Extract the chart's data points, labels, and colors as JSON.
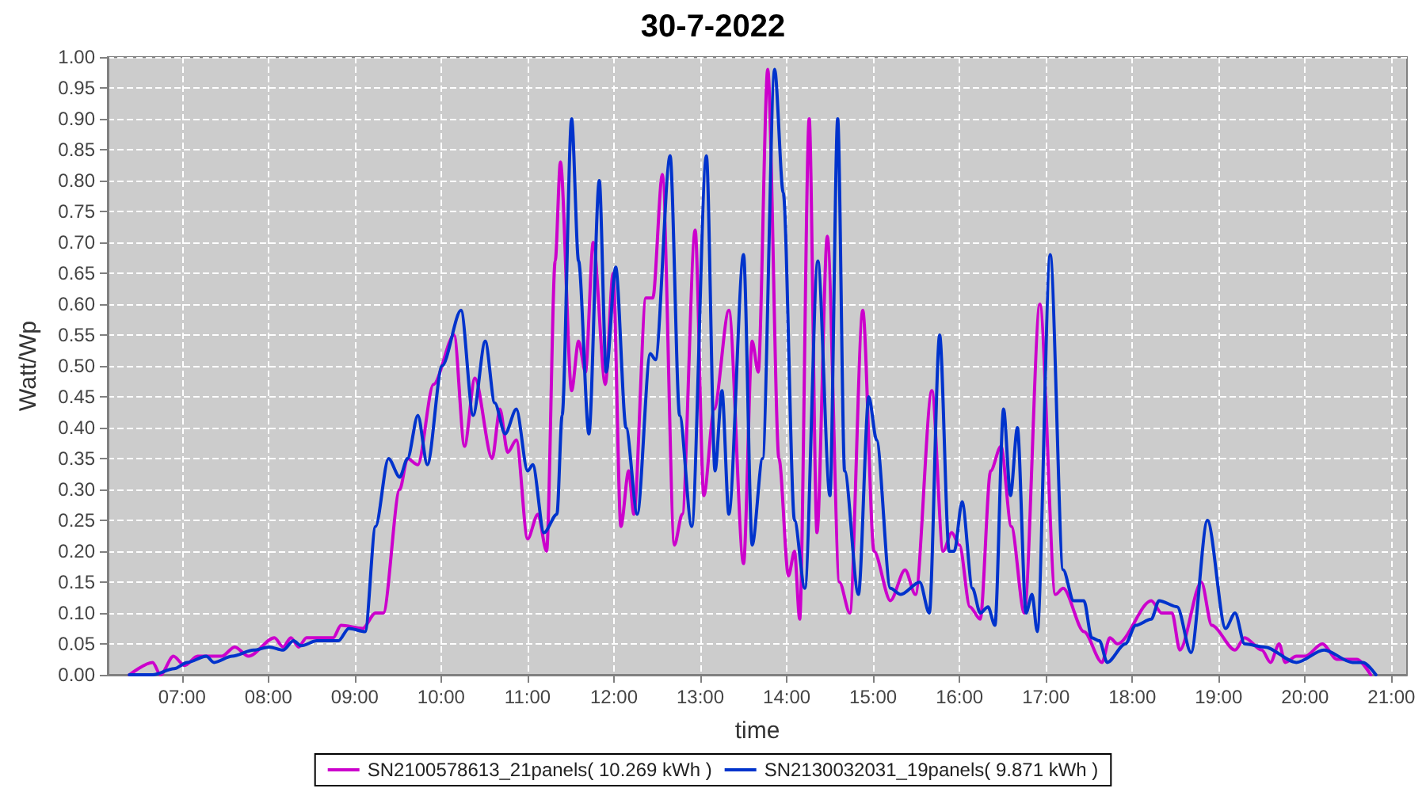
{
  "chart_data": {
    "type": "line",
    "title": "30-7-2022",
    "xlabel": "time",
    "ylabel": "Watt/Wp",
    "xlim": [
      6.14,
      21.18
    ],
    "xticks": [
      {
        "value": 7,
        "label": "07:00"
      },
      {
        "value": 8,
        "label": "08:00"
      },
      {
        "value": 9,
        "label": "09:00"
      },
      {
        "value": 10,
        "label": "10:00"
      },
      {
        "value": 11,
        "label": "11:00"
      },
      {
        "value": 12,
        "label": "12:00"
      },
      {
        "value": 13,
        "label": "13:00"
      },
      {
        "value": 14,
        "label": "14:00"
      },
      {
        "value": 15,
        "label": "15:00"
      },
      {
        "value": 16,
        "label": "16:00"
      },
      {
        "value": 17,
        "label": "17:00"
      },
      {
        "value": 18,
        "label": "18:00"
      },
      {
        "value": 19,
        "label": "19:00"
      },
      {
        "value": 20,
        "label": "20:00"
      },
      {
        "value": 21,
        "label": "21:00"
      }
    ],
    "ylim": [
      0,
      1
    ],
    "yticks": [
      {
        "value": 0,
        "label": "0.00"
      },
      {
        "value": 0.05,
        "label": "0.05"
      },
      {
        "value": 0.1,
        "label": "0.10"
      },
      {
        "value": 0.15,
        "label": "0.15"
      },
      {
        "value": 0.2,
        "label": "0.20"
      },
      {
        "value": 0.25,
        "label": "0.25"
      },
      {
        "value": 0.3,
        "label": "0.30"
      },
      {
        "value": 0.35,
        "label": "0.35"
      },
      {
        "value": 0.4,
        "label": "0.40"
      },
      {
        "value": 0.45,
        "label": "0.45"
      },
      {
        "value": 0.5,
        "label": "0.50"
      },
      {
        "value": 0.55,
        "label": "0.55"
      },
      {
        "value": 0.6,
        "label": "0.60"
      },
      {
        "value": 0.65,
        "label": "0.65"
      },
      {
        "value": 0.7,
        "label": "0.70"
      },
      {
        "value": 0.75,
        "label": "0.75"
      },
      {
        "value": 0.8,
        "label": "0.80"
      },
      {
        "value": 0.85,
        "label": "0.85"
      },
      {
        "value": 0.9,
        "label": "0.90"
      },
      {
        "value": 0.95,
        "label": "0.95"
      },
      {
        "value": 1,
        "label": "1.00"
      }
    ],
    "grid": true,
    "legend": "bottom",
    "line_style": "solid",
    "series": [
      {
        "name": "SN2100578613_21panels( 10.269 kWh )",
        "color": "#cc00cc",
        "x": [
          6.39,
          6.66,
          6.75,
          6.9,
          7.03,
          7.18,
          7.46,
          7.61,
          7.77,
          8.07,
          8.17,
          8.26,
          8.35,
          8.44,
          8.75,
          8.84,
          9.09,
          9.24,
          9.33,
          9.52,
          9.61,
          9.73,
          9.91,
          10.15,
          10.27,
          10.39,
          10.59,
          10.68,
          10.77,
          10.87,
          11.0,
          11.12,
          11.22,
          11.32,
          11.38,
          11.51,
          11.59,
          11.67,
          11.76,
          11.9,
          11.99,
          12.08,
          12.17,
          12.23,
          12.37,
          12.45,
          12.56,
          12.7,
          12.79,
          12.94,
          13.04,
          13.16,
          13.33,
          13.5,
          13.6,
          13.67,
          13.78,
          13.91,
          14.02,
          14.09,
          14.15,
          14.26,
          14.35,
          14.47,
          14.61,
          14.73,
          14.88,
          15.01,
          15.2,
          15.37,
          15.49,
          15.68,
          15.81,
          15.91,
          16.0,
          16.12,
          16.24,
          16.36,
          16.48,
          16.6,
          16.75,
          16.93,
          17.11,
          17.2,
          17.44,
          17.65,
          17.74,
          17.83,
          18.22,
          18.34,
          18.46,
          18.55,
          18.8,
          18.92,
          19.19,
          19.3,
          19.5,
          19.6,
          19.7,
          19.77,
          19.9,
          20.0,
          20.2,
          20.37,
          20.6,
          20.76
        ],
        "values": [
          0,
          0.02,
          0,
          0.03,
          0.015,
          0.03,
          0.03,
          0.045,
          0.03,
          0.06,
          0.045,
          0.06,
          0.045,
          0.06,
          0.06,
          0.08,
          0.075,
          0.1,
          0.1,
          0.3,
          0.35,
          0.34,
          0.47,
          0.55,
          0.37,
          0.48,
          0.35,
          0.43,
          0.36,
          0.38,
          0.22,
          0.26,
          0.2,
          0.67,
          0.83,
          0.46,
          0.54,
          0.49,
          0.7,
          0.47,
          0.65,
          0.24,
          0.33,
          0.26,
          0.61,
          0.61,
          0.81,
          0.21,
          0.26,
          0.72,
          0.29,
          0.43,
          0.59,
          0.18,
          0.54,
          0.49,
          0.98,
          0.35,
          0.16,
          0.2,
          0.09,
          0.9,
          0.23,
          0.71,
          0.15,
          0.1,
          0.59,
          0.2,
          0.12,
          0.17,
          0.13,
          0.46,
          0.2,
          0.23,
          0.21,
          0.11,
          0.09,
          0.33,
          0.37,
          0.24,
          0.1,
          0.6,
          0.13,
          0.14,
          0.07,
          0.02,
          0.06,
          0.05,
          0.12,
          0.1,
          0.1,
          0.04,
          0.15,
          0.08,
          0.04,
          0.06,
          0.04,
          0.02,
          0.05,
          0.02,
          0.03,
          0.03,
          0.05,
          0.025,
          0.025,
          0
        ]
      },
      {
        "name": "SN2130032031_19panels( 9.871 kWh )",
        "color": "#0033cc",
        "x": [
          6.39,
          6.66,
          6.91,
          7.06,
          7.28,
          7.37,
          7.58,
          7.83,
          8.01,
          8.17,
          8.29,
          8.38,
          8.56,
          8.81,
          8.93,
          9.12,
          9.24,
          9.39,
          9.52,
          9.61,
          9.73,
          9.84,
          10.01,
          10.23,
          10.37,
          10.51,
          10.62,
          10.74,
          10.87,
          11.0,
          11.06,
          11.19,
          11.34,
          11.4,
          11.51,
          11.59,
          11.71,
          11.83,
          11.91,
          12.02,
          12.14,
          12.27,
          12.42,
          12.48,
          12.65,
          12.76,
          12.9,
          13.07,
          13.17,
          13.25,
          13.33,
          13.5,
          13.6,
          13.72,
          13.86,
          13.96,
          14.09,
          14.21,
          14.36,
          14.5,
          14.59,
          14.67,
          14.83,
          14.95,
          15.04,
          15.2,
          15.32,
          15.54,
          15.65,
          15.77,
          15.88,
          15.94,
          16.03,
          16.15,
          16.24,
          16.33,
          16.41,
          16.51,
          16.59,
          16.67,
          16.77,
          16.84,
          16.9,
          17.05,
          17.2,
          17.32,
          17.44,
          17.53,
          17.62,
          17.71,
          17.92,
          18.04,
          18.22,
          18.31,
          18.52,
          18.68,
          18.87,
          19.08,
          19.19,
          19.3,
          19.53,
          19.9,
          20.22,
          20.55,
          20.67,
          20.82
        ],
        "values": [
          0,
          0,
          0.01,
          0.02,
          0.03,
          0.02,
          0.03,
          0.04,
          0.045,
          0.04,
          0.055,
          0.047,
          0.055,
          0.055,
          0.075,
          0.07,
          0.24,
          0.35,
          0.32,
          0.35,
          0.42,
          0.34,
          0.5,
          0.59,
          0.42,
          0.54,
          0.44,
          0.39,
          0.43,
          0.33,
          0.34,
          0.23,
          0.26,
          0.42,
          0.9,
          0.67,
          0.39,
          0.8,
          0.49,
          0.66,
          0.4,
          0.26,
          0.52,
          0.51,
          0.84,
          0.42,
          0.24,
          0.84,
          0.33,
          0.46,
          0.26,
          0.68,
          0.21,
          0.35,
          0.98,
          0.78,
          0.25,
          0.14,
          0.67,
          0.29,
          0.9,
          0.33,
          0.13,
          0.45,
          0.38,
          0.14,
          0.13,
          0.15,
          0.1,
          0.55,
          0.2,
          0.2,
          0.28,
          0.14,
          0.1,
          0.11,
          0.08,
          0.43,
          0.29,
          0.4,
          0.1,
          0.13,
          0.07,
          0.68,
          0.17,
          0.12,
          0.12,
          0.06,
          0.055,
          0.02,
          0.05,
          0.08,
          0.09,
          0.12,
          0.11,
          0.036,
          0.25,
          0.075,
          0.1,
          0.05,
          0.045,
          0.02,
          0.04,
          0.02,
          0.02,
          0
        ]
      }
    ]
  }
}
